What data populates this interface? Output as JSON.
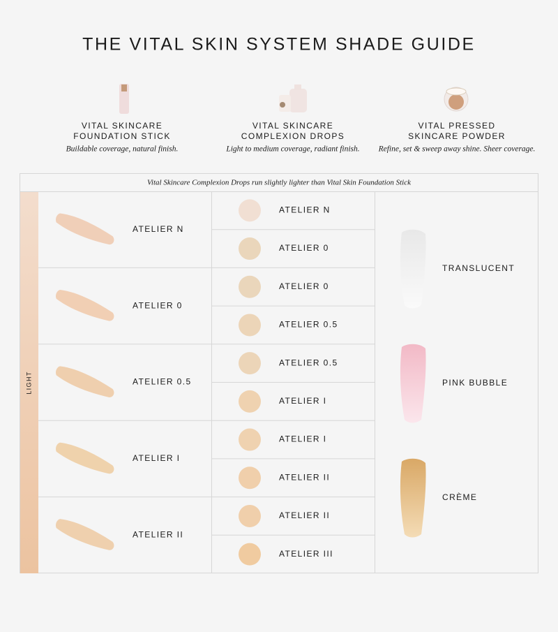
{
  "title": "THE VITAL SKIN SYSTEM SHADE GUIDE",
  "products": [
    {
      "name": [
        "VITAL SKINCARE",
        "FOUNDATION STICK"
      ],
      "description": "Buildable coverage, natural finish."
    },
    {
      "name": [
        "VITAL SKINCARE",
        "COMPLEXION DROPS"
      ],
      "description": "Light to medium coverage, radiant finish."
    },
    {
      "name": [
        "VITAL PRESSED",
        "SKINCARE POWDER"
      ],
      "description": "Refine, set & sweep away shine. Sheer coverage."
    }
  ],
  "table": {
    "note": "Vital Skincare Complexion Drops run slightly lighter than Vital Skin Foundation Stick",
    "range_label": "LIGHT",
    "stick_shades": [
      "ATELIER N",
      "ATELIER 0",
      "ATELIER 0.5",
      "ATELIER I",
      "ATELIER II"
    ],
    "drops_shades": [
      "ATELIER N",
      "ATELIER 0",
      "ATELIER 0",
      "ATELIER 0.5",
      "ATELIER 0.5",
      "ATELIER I",
      "ATELIER I",
      "ATELIER II",
      "ATELIER II",
      "ATELIER III"
    ],
    "powder_shades": [
      "TRANSLUCENT",
      "PINK BUBBLE",
      "CRÈME"
    ]
  }
}
